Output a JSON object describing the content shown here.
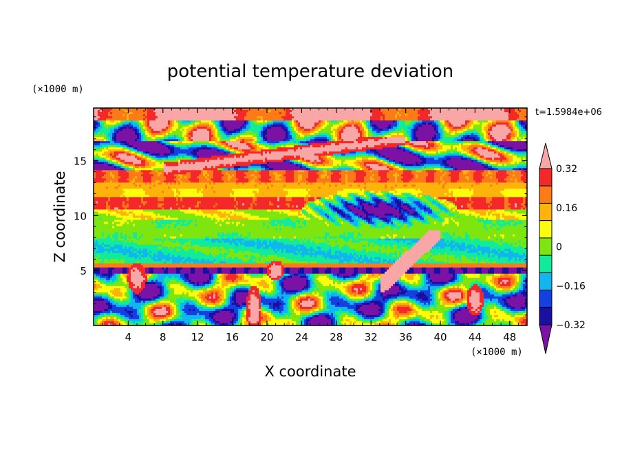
{
  "chart_data": {
    "type": "heatmap",
    "title": "potential temperature deviation",
    "xlabel": "X coordinate",
    "ylabel": "Z coordinate",
    "x_unit": "(×1000 m)",
    "y_unit": "(×1000 m)",
    "time_label": "t=1.5984e+06",
    "xlim": [
      0,
      50
    ],
    "ylim": [
      0,
      19.8
    ],
    "x_ticks": [
      4,
      8,
      12,
      16,
      20,
      24,
      28,
      32,
      36,
      40,
      44,
      48
    ],
    "x_tick_labels": [
      "4",
      "8",
      "12",
      "16",
      "20",
      "24",
      "28",
      "32",
      "36",
      "40",
      "44",
      "48"
    ],
    "y_ticks": [
      5,
      10,
      15
    ],
    "y_tick_labels": [
      "5",
      "10",
      "15"
    ],
    "colorbar": {
      "levels": [
        -0.4,
        -0.32,
        -0.24,
        -0.16,
        -0.08,
        0,
        0.08,
        0.16,
        0.24,
        0.32,
        0.4
      ],
      "tick_values": [
        -0.32,
        -0.16,
        0,
        0.16,
        0.32
      ],
      "tick_labels": [
        "−0.32",
        "−0.16",
        "0",
        "0.16",
        "0.32"
      ],
      "colors": [
        "#7a12a6",
        "#1a0fa0",
        "#1440e0",
        "#10b6f0",
        "#10ec9c",
        "#7ee60e",
        "#fcfc0c",
        "#fcb40a",
        "#fc7a18",
        "#f42828",
        "#f8a6a6"
      ],
      "extend": "both"
    },
    "layers": [
      {
        "z_range": [
          19.0,
          19.8
        ],
        "description_value": 0.45
      },
      {
        "z_range": [
          13.0,
          14.0
        ],
        "description_value": 0.3
      },
      {
        "z_range": [
          11.5,
          12.8
        ],
        "description_value": 0.18
      },
      {
        "z_range": [
          10.6,
          11.4
        ],
        "description_value": 0.34
      },
      {
        "z_range": [
          9.5,
          10.5
        ],
        "description_value": 0.1
      },
      {
        "z_range": [
          8.0,
          9.5
        ],
        "description_value": 0.02
      },
      {
        "z_range": [
          6.0,
          8.0
        ],
        "description_value": -0.05
      },
      {
        "z_range": [
          5.3,
          5.6
        ],
        "description_value": 0.28
      }
    ]
  }
}
